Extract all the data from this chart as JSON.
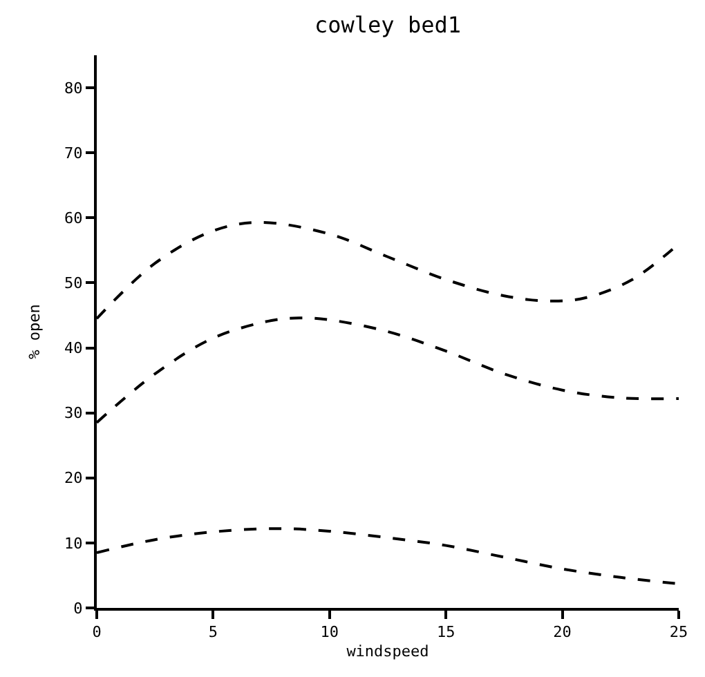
{
  "chart_data": {
    "type": "line",
    "title": "cowley bed1",
    "xlabel": "windspeed",
    "ylabel": "% open",
    "xlim": [
      0,
      25
    ],
    "xticks": [
      0,
      5,
      10,
      15,
      20,
      25
    ],
    "ylim": [
      0,
      85
    ],
    "yticks": [
      0,
      10,
      20,
      30,
      40,
      50,
      60,
      70,
      80
    ],
    "marker": "none",
    "line_style": "dashed",
    "series": [
      {
        "color": "#000000",
        "x": [
          0,
          2.5,
          5,
          7,
          10,
          12.5,
          15,
          17.5,
          19.5,
          21,
          23,
          25
        ],
        "values": [
          44.5,
          53,
          58,
          59.3,
          57.5,
          54,
          50.5,
          48,
          47.2,
          47.7,
          50.5,
          56
        ]
      },
      {
        "color": "#000000",
        "x": [
          0,
          2.5,
          5,
          7.5,
          8.7,
          10,
          12.5,
          15,
          17.5,
          20,
          22.5,
          25
        ],
        "values": [
          28.5,
          36,
          41.5,
          44.2,
          44.6,
          44.3,
          42.5,
          39.5,
          36,
          33.5,
          32.3,
          32.2
        ]
      },
      {
        "color": "#000000",
        "x": [
          0,
          2.5,
          5,
          7.75,
          10,
          12.5,
          15,
          17.5,
          20,
          22.5,
          25
        ],
        "values": [
          8.5,
          10.5,
          11.7,
          12.2,
          11.8,
          10.8,
          9.6,
          7.8,
          6.0,
          4.7,
          3.7
        ]
      }
    ]
  }
}
